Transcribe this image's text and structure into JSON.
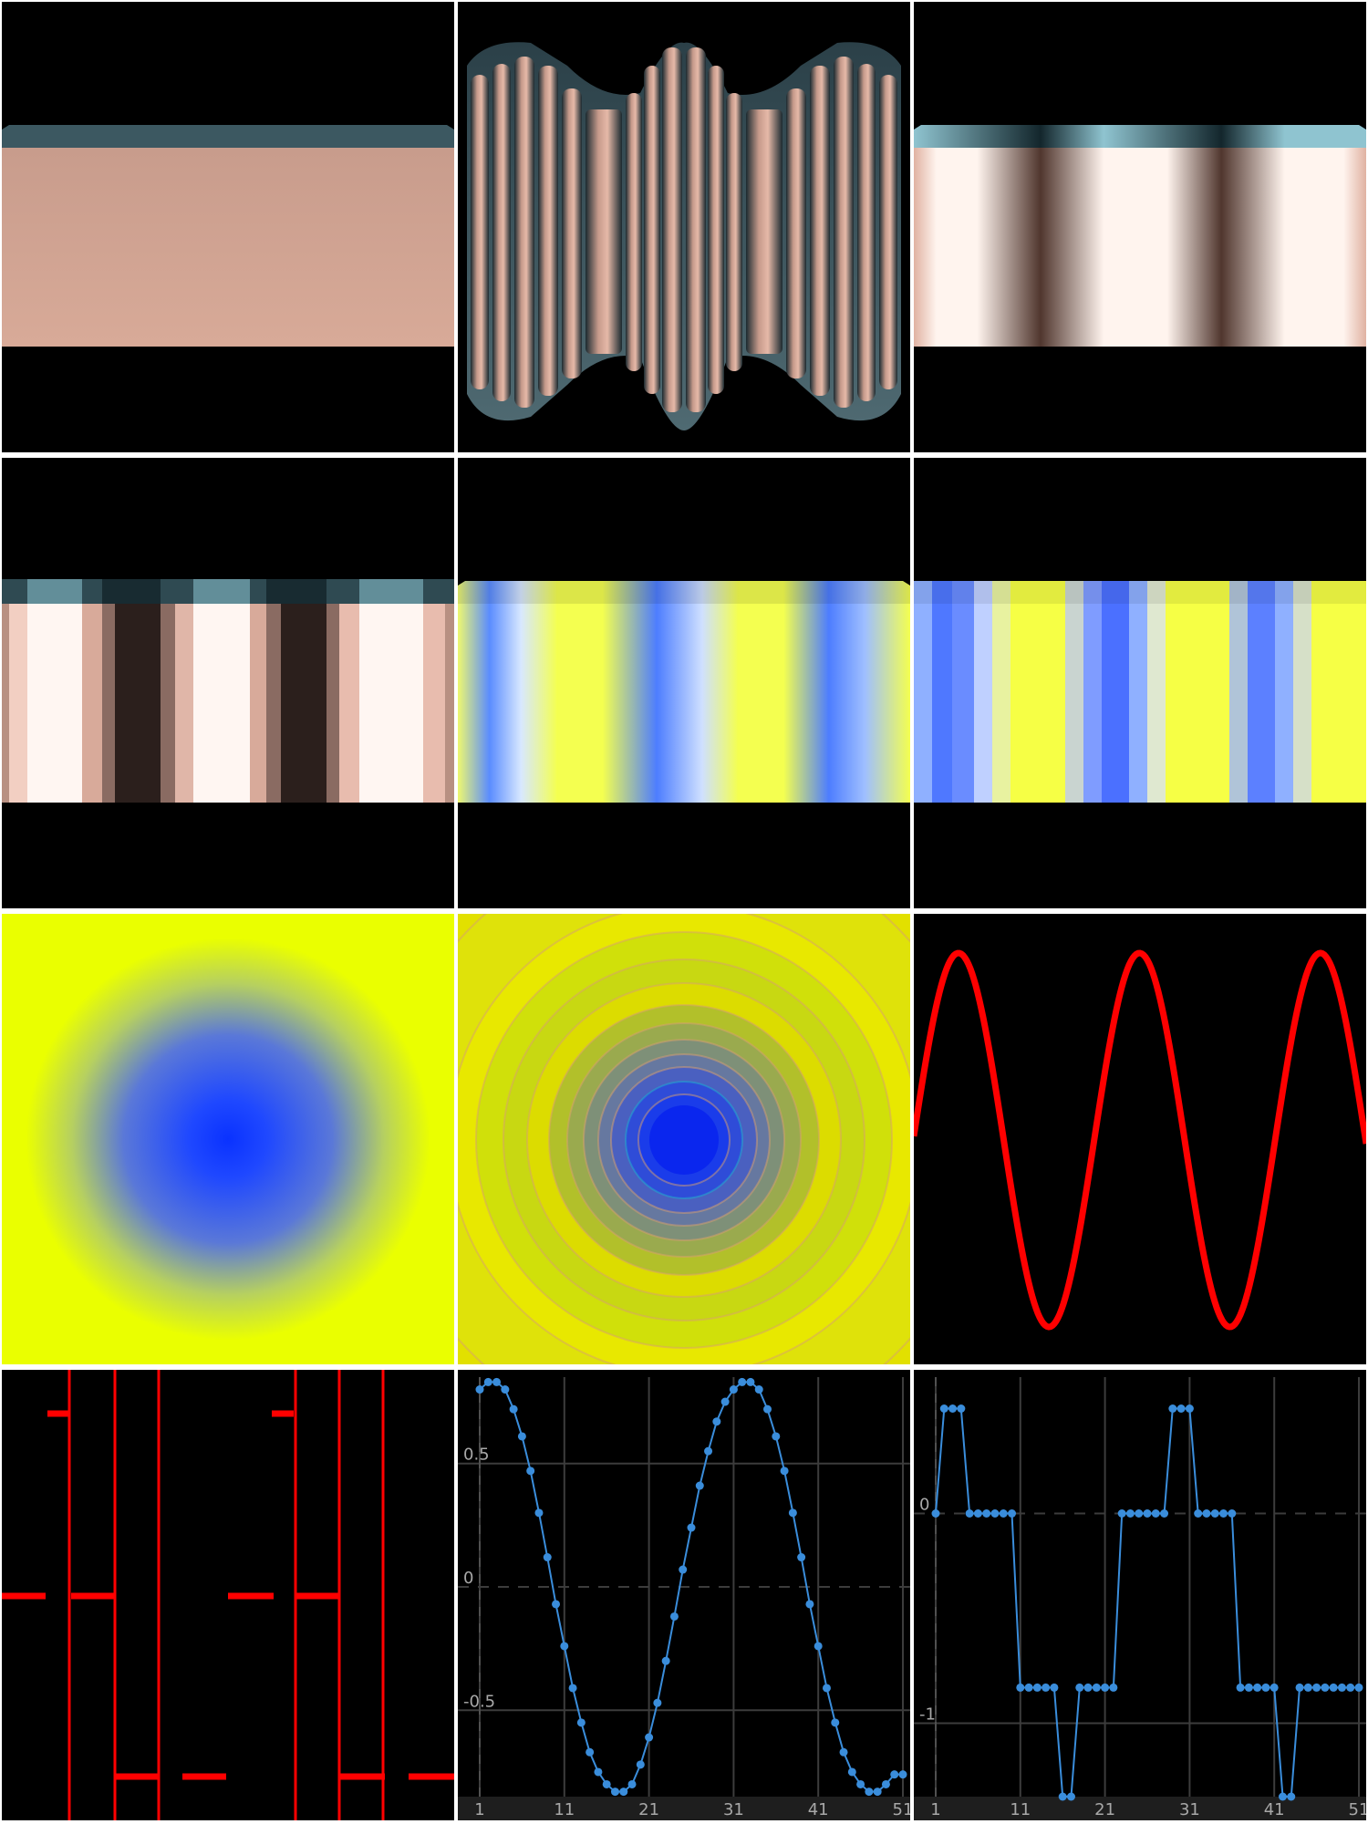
{
  "panels": [
    {
      "name": "flat-shaded-cylinder",
      "kind": "render"
    },
    {
      "name": "bumpy-lit-cylinder",
      "kind": "render"
    },
    {
      "name": "stripe-shaded-cylinder",
      "kind": "render"
    },
    {
      "name": "banded-stripe-cylinder",
      "kind": "render"
    },
    {
      "name": "colormap-cylinder",
      "kind": "render"
    },
    {
      "name": "banded-colormap-cylinder",
      "kind": "render"
    },
    {
      "name": "radial-colormap",
      "kind": "render"
    },
    {
      "name": "banded-radial-colormap",
      "kind": "render"
    },
    {
      "name": "sine-wave",
      "kind": "render"
    },
    {
      "name": "step-segments",
      "kind": "render"
    },
    {
      "name": "sampled-sine-plot",
      "kind": "chart"
    },
    {
      "name": "quantized-sine-plot",
      "kind": "chart"
    }
  ],
  "colors": {
    "skin": "#d8a896",
    "rim": "#3c5861",
    "yellow": "#eaff00",
    "blue": "#0a32ff",
    "red": "#ff0000",
    "plot_blue": "#3a8ddb",
    "grid": "#404040"
  },
  "chart_data": [
    {
      "type": "line",
      "title": "",
      "x_tick_labels": [
        "1",
        "11",
        "21",
        "31",
        "41",
        "51"
      ],
      "y_tick_labels": [
        "0.5",
        "0",
        "-0.5"
      ],
      "xlim": [
        1,
        51
      ],
      "ylim": [
        -0.85,
        0.85
      ],
      "series": [
        {
          "x": [
            1,
            2,
            3,
            4,
            5,
            6,
            7,
            8,
            9,
            10,
            11,
            12,
            13,
            14,
            15,
            16,
            17,
            18,
            19,
            20,
            21,
            22,
            23,
            24,
            25,
            26,
            27,
            28,
            29,
            30,
            31,
            32,
            33,
            34,
            35,
            36,
            37,
            38,
            39,
            40,
            41,
            42,
            43,
            44,
            45,
            46,
            47,
            48,
            49,
            50,
            51
          ],
          "y": [
            0.8,
            0.83,
            0.83,
            0.8,
            0.72,
            0.61,
            0.47,
            0.3,
            0.12,
            -0.07,
            -0.24,
            -0.41,
            -0.55,
            -0.67,
            -0.75,
            -0.8,
            -0.83,
            -0.83,
            -0.8,
            -0.72,
            -0.61,
            -0.47,
            -0.3,
            -0.12,
            0.07,
            0.24,
            0.41,
            0.55,
            0.67,
            0.75,
            0.8,
            0.83,
            0.83,
            0.8,
            0.72,
            0.61,
            0.47,
            0.3,
            0.12,
            -0.07,
            -0.24,
            -0.41,
            -0.55,
            -0.67,
            -0.75,
            -0.8,
            -0.83,
            -0.83,
            -0.8,
            -0.76,
            -0.76
          ]
        }
      ]
    },
    {
      "type": "line",
      "title": "",
      "x_tick_labels": [
        "1",
        "11",
        "21",
        "31",
        "41",
        "51"
      ],
      "y_tick_labels": [
        "0",
        "-1"
      ],
      "xlim": [
        1,
        51
      ],
      "ylim": [
        -1.35,
        0.65
      ],
      "series": [
        {
          "x": [
            1,
            2,
            3,
            4,
            5,
            6,
            7,
            8,
            9,
            10,
            11,
            12,
            13,
            14,
            15,
            16,
            17,
            18,
            19,
            20,
            21,
            22,
            23,
            24,
            25,
            26,
            27,
            28,
            29,
            30,
            31,
            32,
            33,
            34,
            35,
            36,
            37,
            38,
            39,
            40,
            41,
            42,
            43,
            44,
            45,
            46,
            47,
            48,
            49,
            50,
            51
          ],
          "y": [
            0,
            0.5,
            0.5,
            0.5,
            0,
            0,
            0,
            0,
            0,
            0,
            -0.83,
            -0.83,
            -0.83,
            -0.83,
            -0.83,
            -1.35,
            -1.35,
            -0.83,
            -0.83,
            -0.83,
            -0.83,
            -0.83,
            0,
            0,
            0,
            0,
            0,
            0,
            0.5,
            0.5,
            0.5,
            0,
            0,
            0,
            0,
            0,
            -0.83,
            -0.83,
            -0.83,
            -0.83,
            -0.83,
            -1.35,
            -1.35,
            -0.83,
            -0.83,
            -0.83,
            -0.83,
            -0.83,
            -0.83,
            -0.83,
            -0.83
          ]
        }
      ]
    }
  ]
}
